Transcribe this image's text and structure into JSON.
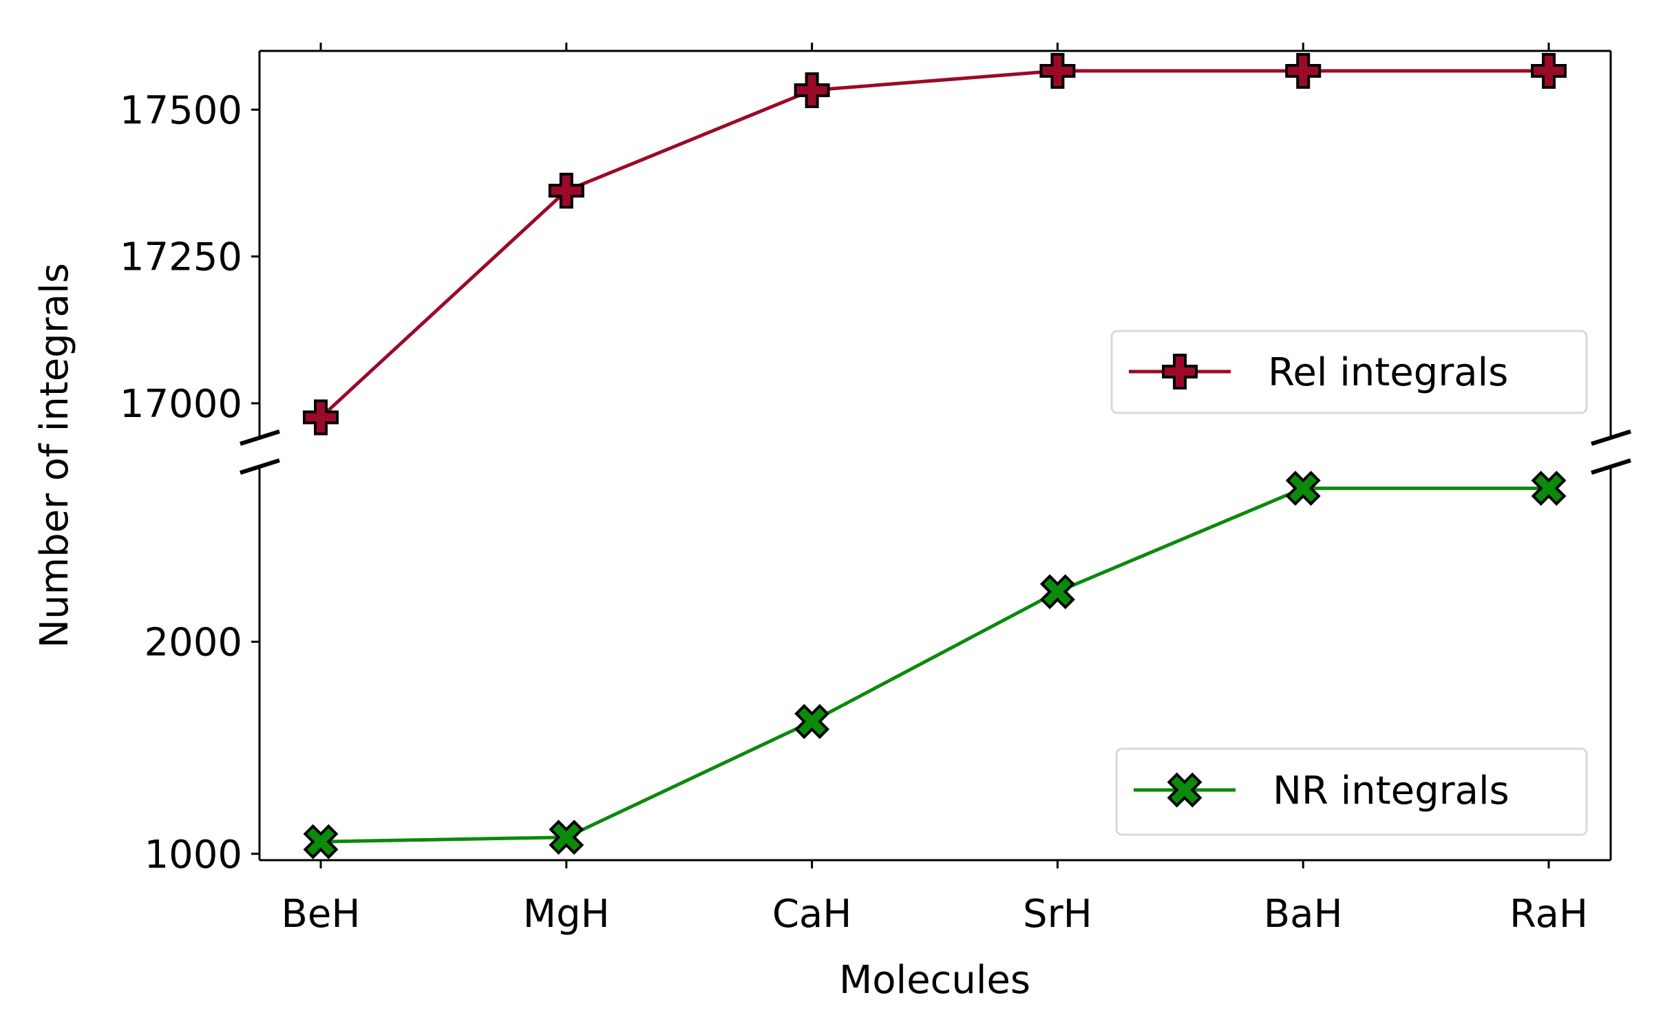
{
  "chart_data": {
    "type": "line",
    "xlabel": "Molecules",
    "ylabel": "Number of integrals",
    "categories": [
      "BeH",
      "MgH",
      "CaH",
      "SrH",
      "BaH",
      "RaH"
    ],
    "broken_y_axis": true,
    "panels": [
      {
        "position": "top",
        "ylim": [
          16945,
          17600
        ],
        "yticks": [
          17000,
          17250,
          17500
        ],
        "ytick_labels": [
          "17000",
          "17250",
          "17500"
        ],
        "legend_position": "right",
        "series": [
          {
            "name": "Rel integrals",
            "color": "#9b0a28",
            "marker": "plus-filled",
            "values": [
              16976,
              17362,
              17533,
              17566,
              17566,
              17566
            ]
          }
        ]
      },
      {
        "position": "bottom",
        "ylim": [
          970,
          2820
        ],
        "yticks": [
          1000,
          2000
        ],
        "ytick_labels": [
          "1000",
          "2000"
        ],
        "legend_position": "lower right",
        "series": [
          {
            "name": "NR integrals",
            "color": "#0b8a0b",
            "marker": "x-filled",
            "values": [
              1057,
              1078,
              1624,
              2236,
              2724,
              2724
            ]
          }
        ]
      }
    ],
    "grid": false
  }
}
